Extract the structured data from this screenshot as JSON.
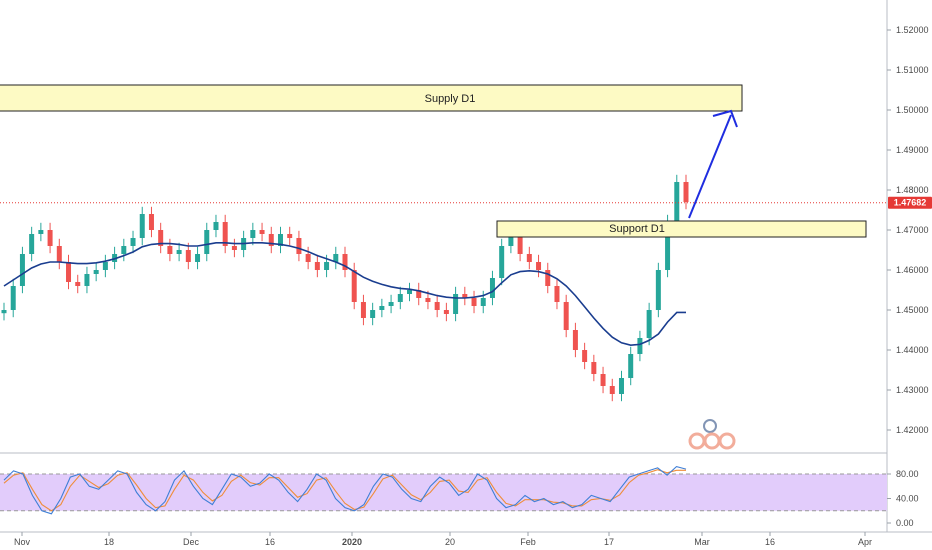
{
  "colors": {
    "up": "#26a69a",
    "down": "#ef5350",
    "ma": "#1a3d8f",
    "zone_fill": "#fdfac4",
    "zone_stroke": "#222222",
    "arrow": "#1f2de0",
    "current_price": "#e53935",
    "stoch_band": "#e2ccfb",
    "stoch_k": "#3f7fd6",
    "stoch_d": "#ef8d3a"
  },
  "price_axis": {
    "ticks": [
      "1.52000",
      "1.51000",
      "1.50000",
      "1.49000",
      "1.48000",
      "1.47000",
      "1.46000",
      "1.45000",
      "1.44000",
      "1.43000",
      "1.42000"
    ],
    "current_price": "1.47682"
  },
  "oscillator_axis": {
    "ticks": [
      "80.00",
      "40.00",
      "0.00"
    ]
  },
  "time_axis": {
    "ticks": [
      "Nov",
      "18",
      "Dec",
      "16",
      "2020",
      "20",
      "Feb",
      "17",
      "Mar",
      "16",
      "Apr"
    ]
  },
  "zones": {
    "supply": {
      "label": "Supply D1"
    },
    "support": {
      "label": "Support D1"
    }
  },
  "chart_data": {
    "type": "line",
    "series": [
      {
        "values": [
          1.45,
          1.456,
          1.464,
          1.469,
          1.47,
          1.466,
          1.462,
          1.457,
          1.456,
          1.459,
          1.46,
          1.462,
          1.464,
          1.466,
          1.468,
          1.474,
          1.47,
          1.466,
          1.464,
          1.465,
          1.462,
          1.464,
          1.47,
          1.472,
          1.466,
          1.465,
          1.468,
          1.47,
          1.469,
          1.466,
          1.469,
          1.468,
          1.464,
          1.462,
          1.46,
          1.462,
          1.464,
          1.46,
          1.452,
          1.448,
          1.45,
          1.451,
          1.452,
          1.454,
          1.455,
          1.453,
          1.452,
          1.45,
          1.449,
          1.454,
          1.453,
          1.451,
          1.453,
          1.458,
          1.466,
          1.47,
          1.464,
          1.462,
          1.46,
          1.456,
          1.452,
          1.445,
          1.44,
          1.437,
          1.434,
          1.431,
          1.429,
          1.433,
          1.439,
          1.443,
          1.45,
          1.46,
          1.472,
          1.482,
          1.477
        ]
      },
      {
        "values": [
          1.456,
          1.4575,
          1.459,
          1.4605,
          1.4615,
          1.462,
          1.462,
          1.4618,
          1.4616,
          1.4616,
          1.4618,
          1.4622,
          1.4628,
          1.4636,
          1.4645,
          1.4658,
          1.4664,
          1.4666,
          1.4666,
          1.4664,
          1.466,
          1.466,
          1.4664,
          1.4668,
          1.4668,
          1.4666,
          1.4666,
          1.4668,
          1.4668,
          1.4666,
          1.4664,
          1.466,
          1.4654,
          1.4646,
          1.4636,
          1.4628,
          1.462,
          1.461,
          1.4596,
          1.4582,
          1.4572,
          1.4564,
          1.4558,
          1.4554,
          1.4552,
          1.4548,
          1.4542,
          1.4536,
          1.4532,
          1.453,
          1.453,
          1.4532,
          1.4536,
          1.4546,
          1.4568,
          1.4588,
          1.4596,
          1.4598,
          1.4596,
          1.459,
          1.4578,
          1.456,
          1.4536,
          1.4508,
          1.448,
          1.4454,
          1.4432,
          1.4418,
          1.4412,
          1.4414,
          1.4424,
          1.444,
          1.447,
          1.4494,
          1.4494
        ]
      }
    ],
    "ylim": [
      1.415,
      1.525
    ],
    "oscillator": {
      "type": "line",
      "band": [
        20,
        80
      ],
      "ylim": [
        0,
        100
      ],
      "series": [
        {
          "values": [
            70,
            85,
            80,
            45,
            20,
            15,
            40,
            75,
            80,
            60,
            55,
            70,
            85,
            80,
            50,
            30,
            20,
            35,
            70,
            85,
            60,
            40,
            30,
            55,
            80,
            75,
            60,
            65,
            80,
            70,
            50,
            35,
            55,
            80,
            70,
            40,
            25,
            20,
            30,
            60,
            80,
            75,
            55,
            40,
            35,
            60,
            75,
            65,
            45,
            55,
            80,
            70,
            40,
            25,
            30,
            45,
            35,
            40,
            30,
            35,
            25,
            30,
            45,
            40,
            35,
            55,
            75,
            80,
            85,
            90,
            78,
            92,
            88
          ]
        },
        {
          "values": [
            65,
            78,
            82,
            55,
            30,
            20,
            30,
            60,
            78,
            68,
            58,
            64,
            78,
            82,
            62,
            40,
            25,
            28,
            55,
            78,
            70,
            50,
            36,
            45,
            68,
            78,
            66,
            62,
            74,
            74,
            58,
            42,
            48,
            70,
            74,
            52,
            32,
            22,
            26,
            48,
            72,
            78,
            62,
            46,
            38,
            50,
            68,
            70,
            52,
            50,
            70,
            74,
            50,
            32,
            28,
            38,
            38,
            38,
            34,
            33,
            28,
            28,
            38,
            40,
            37,
            46,
            66,
            78,
            82,
            87,
            82,
            86,
            86
          ]
        }
      ]
    }
  }
}
